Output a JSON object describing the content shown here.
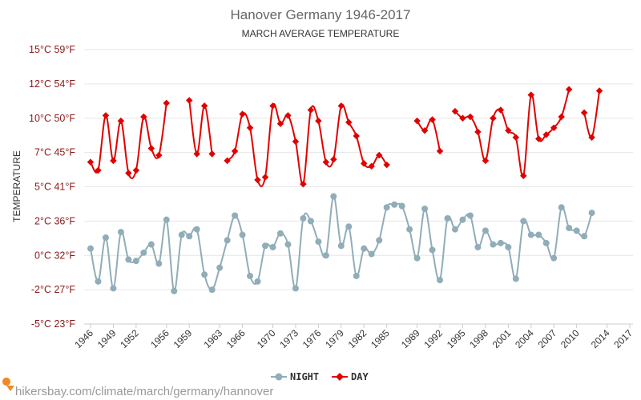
{
  "chart_data": {
    "type": "line",
    "title": "Hanover Germany 1946-2017",
    "subtitle": "MARCH AVERAGE TEMPERATURE",
    "ylabel": "TEMPERATURE",
    "ylim": [
      -5,
      15
    ],
    "yticks": [
      {
        "value": 15,
        "label": "15°C 59°F"
      },
      {
        "value": 12.5,
        "label": "12°C 54°F"
      },
      {
        "value": 10,
        "label": "10°C 50°F"
      },
      {
        "value": 7.5,
        "label": "7°C 45°F"
      },
      {
        "value": 5,
        "label": "5°C 41°F"
      },
      {
        "value": 2.5,
        "label": "2°C 36°F"
      },
      {
        "value": 0,
        "label": "0°C 32°F"
      },
      {
        "value": -2.5,
        "label": "-2°C 27°F"
      },
      {
        "value": -5,
        "label": "-5°C 23°F"
      }
    ],
    "xticks": [
      1946,
      1949,
      1952,
      1956,
      1959,
      1963,
      1966,
      1970,
      1973,
      1976,
      1979,
      1982,
      1985,
      1989,
      1992,
      1995,
      1998,
      2001,
      2004,
      2007,
      2010,
      2014,
      2017
    ],
    "grid": true,
    "legend_position": "bottom",
    "series": [
      {
        "name": "NIGHT",
        "color": "#90adb8",
        "points": [
          [
            1946,
            0.5
          ],
          [
            1947,
            -1.9
          ],
          [
            1948,
            1.3
          ],
          [
            1949,
            -2.4
          ],
          [
            1950,
            1.7
          ],
          [
            1951,
            -0.3
          ],
          [
            1952,
            -0.4
          ],
          [
            1953,
            0.2
          ],
          [
            1954,
            0.8
          ],
          [
            1955,
            -0.6
          ],
          [
            1956,
            2.6
          ],
          [
            1957,
            -2.6
          ],
          [
            1958,
            1.5
          ],
          [
            1959,
            1.4
          ],
          [
            1960,
            1.9
          ],
          [
            1961,
            -1.4
          ],
          [
            1962,
            -2.5
          ],
          [
            1963,
            -0.9
          ],
          [
            1964,
            1.1
          ],
          [
            1965,
            2.9
          ],
          [
            1966,
            1.5
          ],
          [
            1967,
            -1.5
          ],
          [
            1968,
            -1.9
          ],
          [
            1969,
            0.7
          ],
          [
            1970,
            0.6
          ],
          [
            1971,
            1.6
          ],
          [
            1972,
            0.8
          ],
          [
            1973,
            -2.4
          ],
          [
            1974,
            2.7
          ],
          [
            1975,
            2.5
          ],
          [
            1976,
            1.0
          ],
          [
            1977,
            0.0
          ],
          [
            1978,
            4.3
          ],
          [
            1979,
            0.7
          ],
          [
            1980,
            2.1
          ],
          [
            1981,
            -1.5
          ],
          [
            1982,
            0.5
          ],
          [
            1983,
            0.1
          ],
          [
            1984,
            1.1
          ],
          [
            1985,
            3.5
          ],
          [
            1986,
            3.7
          ],
          [
            1987,
            3.6
          ],
          [
            1988,
            1.9
          ],
          [
            1989,
            -0.2
          ],
          [
            1990,
            3.4
          ],
          [
            1991,
            0.4
          ],
          [
            1992,
            -1.8
          ],
          [
            1993,
            2.7
          ],
          [
            1994,
            1.9
          ],
          [
            1995,
            2.6
          ],
          [
            1996,
            2.9
          ],
          [
            1997,
            0.6
          ],
          [
            1998,
            1.8
          ],
          [
            1999,
            0.8
          ],
          [
            2000,
            0.9
          ],
          [
            2001,
            0.6
          ],
          [
            2002,
            -1.7
          ],
          [
            2003,
            2.5
          ],
          [
            2004,
            1.5
          ],
          [
            2005,
            1.5
          ],
          [
            2006,
            0.9
          ],
          [
            2007,
            -0.2
          ],
          [
            2008,
            3.5
          ],
          [
            2009,
            2.0
          ],
          [
            2010,
            1.8
          ],
          [
            2011,
            1.4
          ],
          [
            2012,
            3.1
          ]
        ]
      },
      {
        "name": "DAY",
        "color": "#e00000",
        "points": [
          [
            1946,
            6.8
          ],
          [
            1947,
            6.2
          ],
          [
            1948,
            10.2
          ],
          [
            1949,
            6.9
          ],
          [
            1950,
            9.8
          ],
          [
            1951,
            6.0
          ],
          [
            1952,
            6.2
          ],
          [
            1953,
            10.1
          ],
          [
            1954,
            7.8
          ],
          [
            1955,
            7.3
          ],
          [
            1956,
            11.1
          ],
          [
            1959,
            11.3
          ],
          [
            1960,
            7.4
          ],
          [
            1961,
            10.9
          ],
          [
            1962,
            7.4
          ],
          [
            1964,
            6.9
          ],
          [
            1965,
            7.6
          ],
          [
            1966,
            10.3
          ],
          [
            1967,
            9.3
          ],
          [
            1968,
            5.5
          ],
          [
            1969,
            5.7
          ],
          [
            1970,
            10.9
          ],
          [
            1971,
            9.6
          ],
          [
            1972,
            10.2
          ],
          [
            1973,
            8.3
          ],
          [
            1974,
            5.2
          ],
          [
            1975,
            10.6
          ],
          [
            1976,
            9.8
          ],
          [
            1977,
            6.8
          ],
          [
            1978,
            7.0
          ],
          [
            1979,
            10.9
          ],
          [
            1980,
            9.7
          ],
          [
            1981,
            8.7
          ],
          [
            1982,
            6.7
          ],
          [
            1983,
            6.5
          ],
          [
            1984,
            7.3
          ],
          [
            1985,
            6.6
          ],
          [
            1989,
            9.8
          ],
          [
            1990,
            9.1
          ],
          [
            1991,
            9.9
          ],
          [
            1992,
            7.6
          ],
          [
            1994,
            10.5
          ],
          [
            1995,
            10.0
          ],
          [
            1996,
            10.1
          ],
          [
            1997,
            9.0
          ],
          [
            1998,
            6.9
          ],
          [
            1999,
            10.0
          ],
          [
            2000,
            10.6
          ],
          [
            2001,
            9.1
          ],
          [
            2002,
            8.6
          ],
          [
            2003,
            5.8
          ],
          [
            2004,
            11.7
          ],
          [
            2005,
            8.5
          ],
          [
            2006,
            8.8
          ],
          [
            2007,
            9.3
          ],
          [
            2008,
            10.1
          ],
          [
            2009,
            12.1
          ],
          [
            2011,
            10.4
          ],
          [
            2012,
            8.6
          ],
          [
            2013,
            12.0
          ]
        ]
      }
    ],
    "watermark": "hikersbay.com/climate/march/germany/hannover"
  }
}
